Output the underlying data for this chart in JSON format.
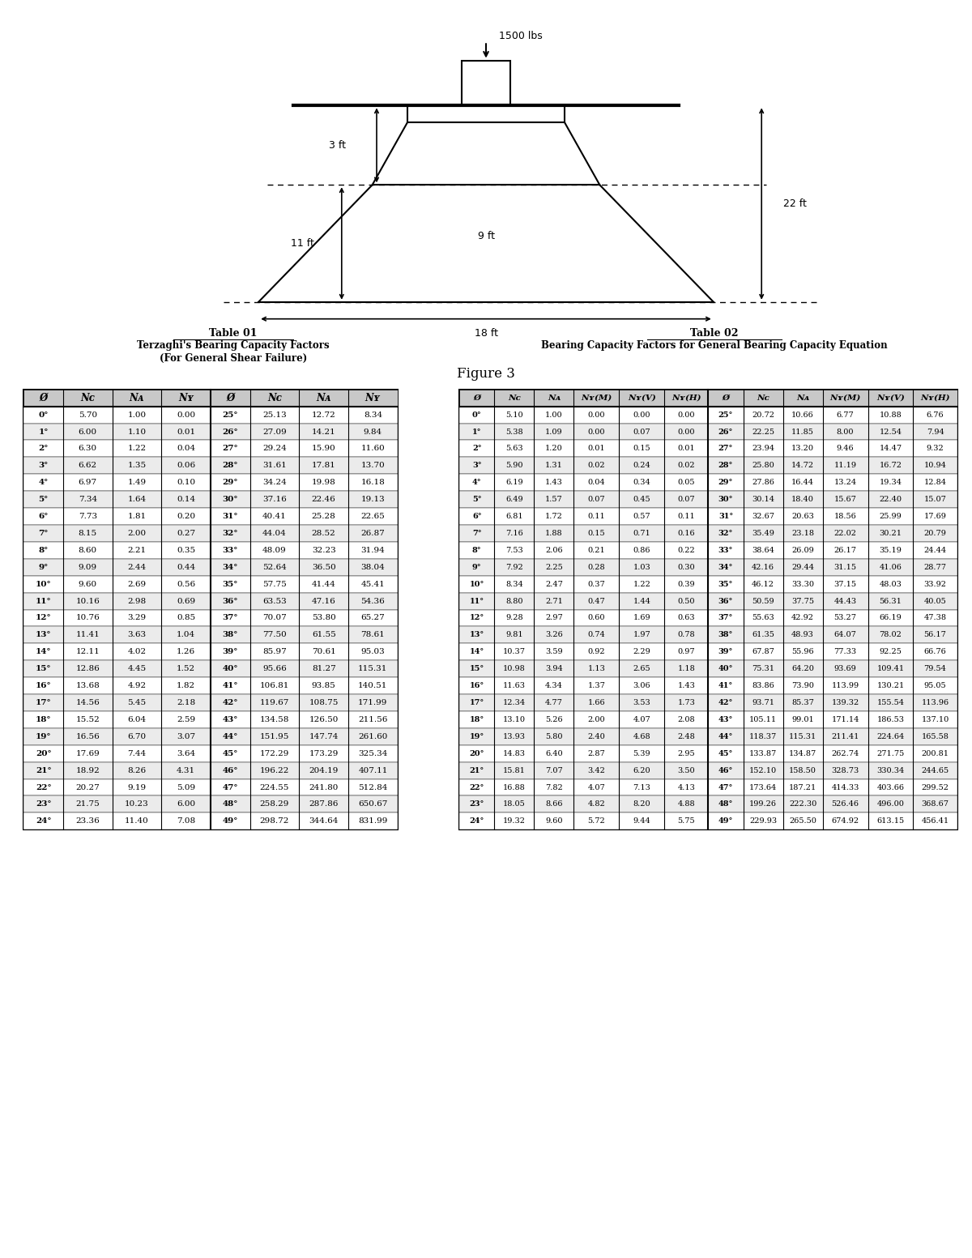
{
  "figure_title": "Figure 3",
  "load_label": "1500 lbs",
  "dim_3ft": "3 ft",
  "dim_9ft": "9 ft",
  "dim_11ft": "11 ft",
  "dim_18ft": "18 ft",
  "dim_22ft": "22 ft",
  "table1_title": "Table 01",
  "table1_subtitle1": "Terzaghi's Bearing Capacity Factors",
  "table1_subtitle2": "(For General Shear Failure)",
  "table2_title": "Table 02",
  "table2_subtitle": "Bearing Capacity Factors for General Bearing Capacity Equation",
  "table1_data": [
    [
      "0°",
      "5.70",
      "1.00",
      "0.00",
      "25°",
      "25.13",
      "12.72",
      "8.34"
    ],
    [
      "1°",
      "6.00",
      "1.10",
      "0.01",
      "26°",
      "27.09",
      "14.21",
      "9.84"
    ],
    [
      "2°",
      "6.30",
      "1.22",
      "0.04",
      "27°",
      "29.24",
      "15.90",
      "11.60"
    ],
    [
      "3°",
      "6.62",
      "1.35",
      "0.06",
      "28°",
      "31.61",
      "17.81",
      "13.70"
    ],
    [
      "4°",
      "6.97",
      "1.49",
      "0.10",
      "29°",
      "34.24",
      "19.98",
      "16.18"
    ],
    [
      "5°",
      "7.34",
      "1.64",
      "0.14",
      "30°",
      "37.16",
      "22.46",
      "19.13"
    ],
    [
      "6°",
      "7.73",
      "1.81",
      "0.20",
      "31°",
      "40.41",
      "25.28",
      "22.65"
    ],
    [
      "7°",
      "8.15",
      "2.00",
      "0.27",
      "32°",
      "44.04",
      "28.52",
      "26.87"
    ],
    [
      "8°",
      "8.60",
      "2.21",
      "0.35",
      "33°",
      "48.09",
      "32.23",
      "31.94"
    ],
    [
      "9°",
      "9.09",
      "2.44",
      "0.44",
      "34°",
      "52.64",
      "36.50",
      "38.04"
    ],
    [
      "10°",
      "9.60",
      "2.69",
      "0.56",
      "35°",
      "57.75",
      "41.44",
      "45.41"
    ],
    [
      "11°",
      "10.16",
      "2.98",
      "0.69",
      "36°",
      "63.53",
      "47.16",
      "54.36"
    ],
    [
      "12°",
      "10.76",
      "3.29",
      "0.85",
      "37°",
      "70.07",
      "53.80",
      "65.27"
    ],
    [
      "13°",
      "11.41",
      "3.63",
      "1.04",
      "38°",
      "77.50",
      "61.55",
      "78.61"
    ],
    [
      "14°",
      "12.11",
      "4.02",
      "1.26",
      "39°",
      "85.97",
      "70.61",
      "95.03"
    ],
    [
      "15°",
      "12.86",
      "4.45",
      "1.52",
      "40°",
      "95.66",
      "81.27",
      "115.31"
    ],
    [
      "16°",
      "13.68",
      "4.92",
      "1.82",
      "41°",
      "106.81",
      "93.85",
      "140.51"
    ],
    [
      "17°",
      "14.56",
      "5.45",
      "2.18",
      "42°",
      "119.67",
      "108.75",
      "171.99"
    ],
    [
      "18°",
      "15.52",
      "6.04",
      "2.59",
      "43°",
      "134.58",
      "126.50",
      "211.56"
    ],
    [
      "19°",
      "16.56",
      "6.70",
      "3.07",
      "44°",
      "151.95",
      "147.74",
      "261.60"
    ],
    [
      "20°",
      "17.69",
      "7.44",
      "3.64",
      "45°",
      "172.29",
      "173.29",
      "325.34"
    ],
    [
      "21°",
      "18.92",
      "8.26",
      "4.31",
      "46°",
      "196.22",
      "204.19",
      "407.11"
    ],
    [
      "22°",
      "20.27",
      "9.19",
      "5.09",
      "47°",
      "224.55",
      "241.80",
      "512.84"
    ],
    [
      "23°",
      "21.75",
      "10.23",
      "6.00",
      "48°",
      "258.29",
      "287.86",
      "650.67"
    ],
    [
      "24°",
      "23.36",
      "11.40",
      "7.08",
      "49°",
      "298.72",
      "344.64",
      "831.99"
    ]
  ],
  "table2_data": [
    [
      "0°",
      "5.10",
      "1.00",
      "0.00",
      "0.00",
      "0.00",
      "25°",
      "20.72",
      "10.66",
      "6.77",
      "10.88",
      "6.76"
    ],
    [
      "1°",
      "5.38",
      "1.09",
      "0.00",
      "0.07",
      "0.00",
      "26°",
      "22.25",
      "11.85",
      "8.00",
      "12.54",
      "7.94"
    ],
    [
      "2°",
      "5.63",
      "1.20",
      "0.01",
      "0.15",
      "0.01",
      "27°",
      "23.94",
      "13.20",
      "9.46",
      "14.47",
      "9.32"
    ],
    [
      "3°",
      "5.90",
      "1.31",
      "0.02",
      "0.24",
      "0.02",
      "28°",
      "25.80",
      "14.72",
      "11.19",
      "16.72",
      "10.94"
    ],
    [
      "4°",
      "6.19",
      "1.43",
      "0.04",
      "0.34",
      "0.05",
      "29°",
      "27.86",
      "16.44",
      "13.24",
      "19.34",
      "12.84"
    ],
    [
      "5°",
      "6.49",
      "1.57",
      "0.07",
      "0.45",
      "0.07",
      "30°",
      "30.14",
      "18.40",
      "15.67",
      "22.40",
      "15.07"
    ],
    [
      "6°",
      "6.81",
      "1.72",
      "0.11",
      "0.57",
      "0.11",
      "31°",
      "32.67",
      "20.63",
      "18.56",
      "25.99",
      "17.69"
    ],
    [
      "7°",
      "7.16",
      "1.88",
      "0.15",
      "0.71",
      "0.16",
      "32°",
      "35.49",
      "23.18",
      "22.02",
      "30.21",
      "20.79"
    ],
    [
      "8°",
      "7.53",
      "2.06",
      "0.21",
      "0.86",
      "0.22",
      "33°",
      "38.64",
      "26.09",
      "26.17",
      "35.19",
      "24.44"
    ],
    [
      "9°",
      "7.92",
      "2.25",
      "0.28",
      "1.03",
      "0.30",
      "34°",
      "42.16",
      "29.44",
      "31.15",
      "41.06",
      "28.77"
    ],
    [
      "10°",
      "8.34",
      "2.47",
      "0.37",
      "1.22",
      "0.39",
      "35°",
      "46.12",
      "33.30",
      "37.15",
      "48.03",
      "33.92"
    ],
    [
      "11°",
      "8.80",
      "2.71",
      "0.47",
      "1.44",
      "0.50",
      "36°",
      "50.59",
      "37.75",
      "44.43",
      "56.31",
      "40.05"
    ],
    [
      "12°",
      "9.28",
      "2.97",
      "0.60",
      "1.69",
      "0.63",
      "37°",
      "55.63",
      "42.92",
      "53.27",
      "66.19",
      "47.38"
    ],
    [
      "13°",
      "9.81",
      "3.26",
      "0.74",
      "1.97",
      "0.78",
      "38°",
      "61.35",
      "48.93",
      "64.07",
      "78.02",
      "56.17"
    ],
    [
      "14°",
      "10.37",
      "3.59",
      "0.92",
      "2.29",
      "0.97",
      "39°",
      "67.87",
      "55.96",
      "77.33",
      "92.25",
      "66.76"
    ],
    [
      "15°",
      "10.98",
      "3.94",
      "1.13",
      "2.65",
      "1.18",
      "40°",
      "75.31",
      "64.20",
      "93.69",
      "109.41",
      "79.54"
    ],
    [
      "16°",
      "11.63",
      "4.34",
      "1.37",
      "3.06",
      "1.43",
      "41°",
      "83.86",
      "73.90",
      "113.99",
      "130.21",
      "95.05"
    ],
    [
      "17°",
      "12.34",
      "4.77",
      "1.66",
      "3.53",
      "1.73",
      "42°",
      "93.71",
      "85.37",
      "139.32",
      "155.54",
      "113.96"
    ],
    [
      "18°",
      "13.10",
      "5.26",
      "2.00",
      "4.07",
      "2.08",
      "43°",
      "105.11",
      "99.01",
      "171.14",
      "186.53",
      "137.10"
    ],
    [
      "19°",
      "13.93",
      "5.80",
      "2.40",
      "4.68",
      "2.48",
      "44°",
      "118.37",
      "115.31",
      "211.41",
      "224.64",
      "165.58"
    ],
    [
      "20°",
      "14.83",
      "6.40",
      "2.87",
      "5.39",
      "2.95",
      "45°",
      "133.87",
      "134.87",
      "262.74",
      "271.75",
      "200.81"
    ],
    [
      "21°",
      "15.81",
      "7.07",
      "3.42",
      "6.20",
      "3.50",
      "46°",
      "152.10",
      "158.50",
      "328.73",
      "330.34",
      "244.65"
    ],
    [
      "22°",
      "16.88",
      "7.82",
      "4.07",
      "7.13",
      "4.13",
      "47°",
      "173.64",
      "187.21",
      "414.33",
      "403.66",
      "299.52"
    ],
    [
      "23°",
      "18.05",
      "8.66",
      "4.82",
      "8.20",
      "4.88",
      "48°",
      "199.26",
      "222.30",
      "526.46",
      "496.00",
      "368.67"
    ],
    [
      "24°",
      "19.32",
      "9.60",
      "5.72",
      "9.44",
      "5.75",
      "49°",
      "229.93",
      "265.50",
      "674.92",
      "613.15",
      "456.41"
    ]
  ],
  "bg_color": "#ffffff",
  "text_color": "#000000",
  "table_header_bg": "#c8c8c8",
  "table_row_bg1": "#ffffff",
  "table_row_bg2": "#ebebeb"
}
